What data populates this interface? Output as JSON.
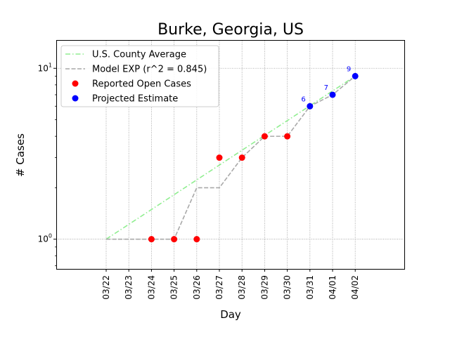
{
  "chart_data": {
    "type": "line",
    "title": "Burke, Georgia, US",
    "xlabel": "Day",
    "ylabel": "# Cases",
    "yscale": "log",
    "ylim": [
      0.67,
      14.5
    ],
    "grid": true,
    "legend_position": "top-left",
    "categories": [
      "03/22",
      "03/23",
      "03/24",
      "03/25",
      "03/26",
      "03/27",
      "03/28",
      "03/29",
      "03/30",
      "03/31",
      "04/01",
      "04/02"
    ],
    "y_ticks": [
      {
        "value": 1,
        "base": "10",
        "exp": "0"
      },
      {
        "value": 10,
        "base": "10",
        "exp": "1"
      }
    ],
    "series": [
      {
        "name": "U.S. County Average",
        "kind": "line",
        "style": "dashdot",
        "color": "#90ee90",
        "x": [
          "03/22",
          "04/02"
        ],
        "values": [
          1,
          9
        ]
      },
      {
        "name": "Model EXP (r^2 = 0.845)",
        "kind": "line",
        "style": "dashed",
        "color": "#a9a9a9",
        "x": [
          "03/22",
          "03/23",
          "03/24",
          "03/25",
          "03/26",
          "03/27",
          "03/28",
          "03/29",
          "03/30",
          "03/31",
          "04/01",
          "04/02"
        ],
        "values": [
          1,
          1,
          1,
          1,
          2,
          2,
          3,
          4,
          4,
          6,
          7,
          9
        ]
      },
      {
        "name": "Reported Open Cases",
        "kind": "scatter",
        "color": "#ff0000",
        "x": [
          "03/24",
          "03/25",
          "03/26",
          "03/27",
          "03/28",
          "03/29",
          "03/30"
        ],
        "values": [
          1,
          1,
          1,
          3,
          3,
          4,
          4
        ]
      },
      {
        "name": "Projected Estimate",
        "kind": "scatter",
        "color": "#0000ff",
        "x": [
          "03/31",
          "04/01",
          "04/02"
        ],
        "values": [
          6,
          7,
          9
        ],
        "labels": [
          "6",
          "7",
          "9"
        ]
      }
    ]
  }
}
